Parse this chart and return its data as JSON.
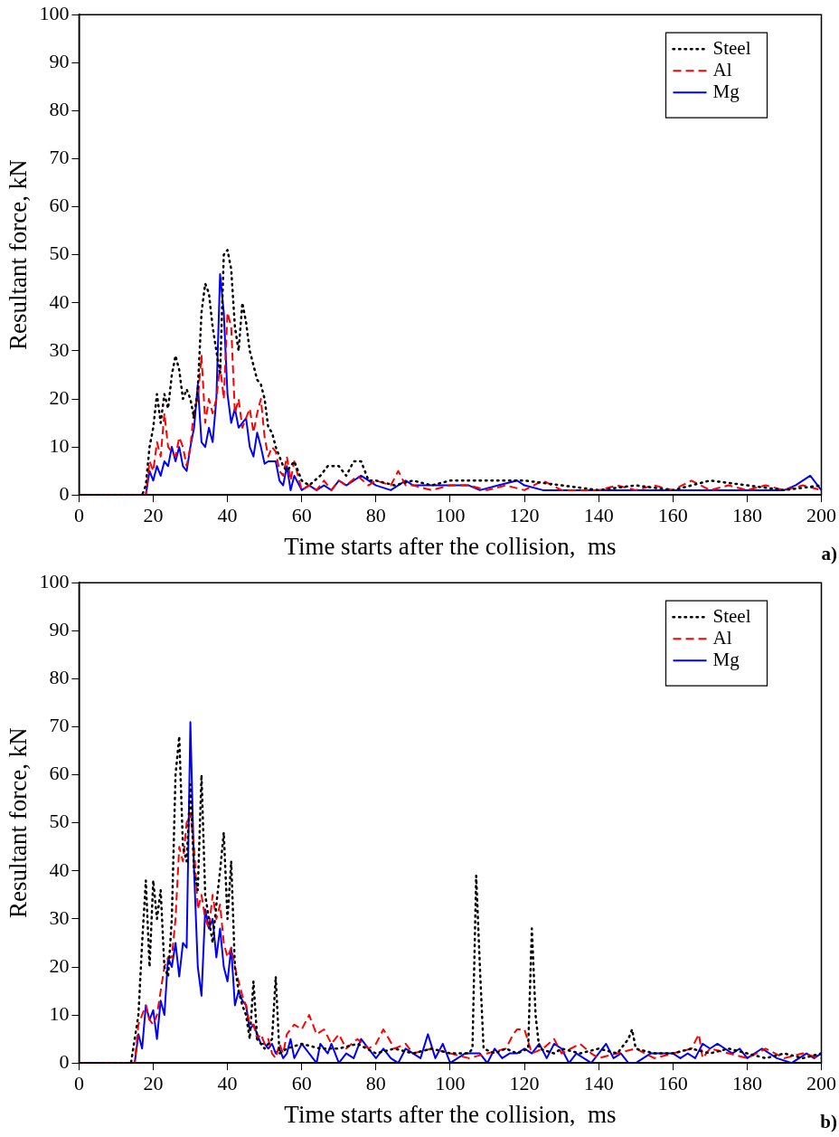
{
  "chart_data": [
    {
      "type": "line",
      "xlabel": "Time starts after the collision,  ms",
      "ylabel": "Resultant force, kN",
      "xlim": [
        0,
        200
      ],
      "ylim": [
        0,
        100
      ],
      "xticks": [
        0,
        20,
        40,
        60,
        80,
        100,
        120,
        140,
        160,
        180,
        200
      ],
      "yticks": [
        0,
        10,
        20,
        30,
        40,
        50,
        60,
        70,
        80,
        90,
        100
      ],
      "grid": false,
      "legend": "top right",
      "marker": "none",
      "annotations": [
        "a)"
      ],
      "series": [
        {
          "name": "Steel",
          "color": "#000000",
          "line_style": "dotted",
          "x": [
            0,
            17,
            18,
            19,
            20,
            21,
            22,
            23,
            24,
            25,
            26,
            27,
            28,
            29,
            30,
            31,
            32,
            33,
            34,
            35,
            36,
            37,
            38,
            39,
            40,
            41,
            42,
            43,
            44,
            45,
            46,
            47,
            48,
            49,
            50,
            51,
            52,
            53,
            54,
            55,
            56,
            58,
            60,
            62,
            65,
            67,
            70,
            72,
            74,
            76,
            78,
            80,
            85,
            90,
            95,
            100,
            110,
            120,
            130,
            140,
            150,
            160,
            170,
            180,
            190,
            200
          ],
          "values": [
            0,
            0,
            2,
            10,
            14,
            21,
            15,
            21,
            18,
            25,
            29,
            26,
            20,
            22,
            20,
            16,
            22,
            38,
            44,
            42,
            35,
            30,
            25,
            50,
            51,
            47,
            35,
            30,
            40,
            36,
            30,
            27,
            24,
            23,
            20,
            14,
            13,
            10,
            8,
            6,
            5,
            7,
            3,
            2,
            4,
            6,
            6,
            4,
            7,
            7,
            3,
            3,
            2,
            3,
            2,
            3,
            3,
            3,
            2,
            1,
            2,
            1,
            3,
            2,
            1,
            2
          ]
        },
        {
          "name": "Al",
          "color": "#ff0000",
          "line_style": "dashed",
          "x": [
            0,
            18,
            19,
            20,
            21,
            22,
            23,
            24,
            25,
            26,
            27,
            28,
            29,
            30,
            31,
            32,
            33,
            34,
            35,
            36,
            37,
            38,
            39,
            40,
            41,
            42,
            43,
            44,
            45,
            46,
            47,
            48,
            49,
            50,
            51,
            52,
            53,
            54,
            55,
            56,
            57,
            58,
            60,
            62,
            64,
            66,
            68,
            70,
            72,
            75,
            78,
            80,
            84,
            86,
            88,
            90,
            95,
            100,
            105,
            110,
            115,
            120,
            125,
            130,
            140,
            145,
            150,
            155,
            160,
            165,
            170,
            175,
            180,
            185,
            190,
            195,
            200
          ],
          "values": [
            0,
            0,
            7,
            5,
            11,
            8,
            17,
            10,
            9,
            8,
            12,
            10,
            6,
            10,
            18,
            20,
            29,
            15,
            20,
            17,
            20,
            27,
            20,
            38,
            35,
            17,
            20,
            14,
            16,
            18,
            13,
            17,
            20,
            12,
            8,
            10,
            9,
            5,
            4,
            8,
            3,
            7,
            1,
            2,
            1,
            3,
            1,
            3,
            2,
            4,
            2,
            3,
            2,
            5,
            2,
            2,
            1,
            2,
            2,
            1,
            2,
            1,
            3,
            1,
            1,
            2,
            1,
            2,
            1,
            3,
            1,
            2,
            1,
            2,
            1,
            2,
            1
          ]
        },
        {
          "name": "Mg",
          "color": "#0000ff",
          "line_style": "solid",
          "x": [
            0,
            18,
            19,
            20,
            21,
            22,
            23,
            24,
            25,
            26,
            27,
            28,
            29,
            30,
            31,
            32,
            33,
            34,
            35,
            36,
            37,
            38,
            39,
            40,
            41,
            42,
            43,
            44,
            45,
            46,
            47,
            48,
            49,
            50,
            51,
            52,
            53,
            54,
            55,
            56,
            57,
            58,
            60,
            62,
            64,
            66,
            68,
            70,
            72,
            76,
            80,
            84,
            88,
            90,
            95,
            100,
            105,
            108,
            113,
            118,
            120,
            125,
            130,
            135,
            140,
            145,
            150,
            155,
            160,
            165,
            170,
            175,
            180,
            185,
            190,
            193,
            197,
            200
          ],
          "values": [
            0,
            0,
            5,
            3,
            6,
            4,
            7,
            6,
            10,
            7,
            10,
            6,
            5,
            10,
            14,
            23,
            11,
            10,
            14,
            11,
            20,
            46,
            38,
            21,
            15,
            18,
            14,
            15,
            16,
            10,
            8,
            13,
            10,
            6.5,
            7,
            7,
            7,
            3,
            2,
            6,
            1,
            4,
            1,
            2,
            1,
            2,
            1,
            3,
            2,
            4,
            2,
            1,
            3,
            2,
            2,
            2,
            2,
            1,
            2,
            3,
            2,
            1,
            1,
            1,
            1,
            1,
            1,
            1,
            1,
            1,
            1,
            1,
            1,
            1,
            1,
            2,
            4,
            1
          ]
        }
      ]
    },
    {
      "type": "line",
      "xlabel": "Time starts after the collision,  ms",
      "ylabel": "Resultant force, kN",
      "xlim": [
        0,
        200
      ],
      "ylim": [
        0,
        100
      ],
      "xticks": [
        0,
        20,
        40,
        60,
        80,
        100,
        120,
        140,
        160,
        180,
        200
      ],
      "yticks": [
        0,
        10,
        20,
        30,
        40,
        50,
        60,
        70,
        80,
        90,
        100
      ],
      "grid": false,
      "legend": "top right",
      "marker": "none",
      "annotations": [
        "b)"
      ],
      "series": [
        {
          "name": "Steel",
          "color": "#000000",
          "line_style": "dotted",
          "x": [
            0,
            14,
            15,
            16,
            17,
            18,
            19,
            20,
            21,
            22,
            23,
            24,
            25,
            26,
            27,
            28,
            29,
            30,
            31,
            32,
            33,
            34,
            35,
            36,
            37,
            38,
            39,
            40,
            41,
            42,
            43,
            44,
            45,
            46,
            47,
            48,
            50,
            52,
            53,
            54,
            56,
            60,
            65,
            70,
            75,
            80,
            85,
            90,
            95,
            100,
            105,
            106,
            107,
            108,
            109,
            112,
            115,
            118,
            121,
            122,
            123,
            124,
            128,
            130,
            135,
            140,
            145,
            148,
            149,
            150,
            155,
            160,
            165,
            170,
            175,
            180,
            185,
            190,
            195,
            200
          ],
          "values": [
            0,
            0,
            5,
            10,
            25,
            38,
            20,
            38,
            30,
            36,
            20,
            18,
            30,
            60,
            68,
            45,
            42,
            58,
            40,
            36,
            60,
            35,
            30,
            25,
            33,
            40,
            48,
            30,
            42,
            20,
            15,
            12,
            10,
            5,
            17,
            5,
            3,
            5,
            18,
            2,
            3,
            4,
            3,
            3,
            4,
            2,
            3,
            2,
            3,
            2,
            2,
            3,
            39,
            20,
            3,
            2,
            3,
            2,
            3,
            28,
            10,
            3,
            2,
            3,
            2,
            3,
            2,
            5,
            7,
            3,
            2,
            2,
            3,
            2,
            3,
            2,
            1,
            2,
            1,
            2
          ]
        },
        {
          "name": "Al",
          "color": "#ff0000",
          "line_style": "dashed",
          "x": [
            0,
            15,
            16,
            17,
            18,
            19,
            20,
            21,
            22,
            23,
            24,
            25,
            26,
            27,
            28,
            29,
            30,
            31,
            32,
            33,
            34,
            35,
            36,
            37,
            38,
            39,
            40,
            41,
            42,
            43,
            44,
            45,
            46,
            47,
            48,
            49,
            50,
            51,
            52,
            53,
            54,
            55,
            56,
            58,
            60,
            62,
            64,
            66,
            68,
            70,
            72,
            75,
            78,
            80,
            82,
            85,
            88,
            90,
            95,
            100,
            105,
            110,
            115,
            117,
            118,
            120,
            122,
            125,
            128,
            130,
            135,
            138,
            140,
            145,
            150,
            155,
            160,
            165,
            167,
            168,
            170,
            175,
            180,
            185,
            190,
            195,
            200
          ],
          "values": [
            0,
            0,
            8,
            10,
            12,
            9,
            8,
            10,
            15,
            20,
            22,
            22,
            30,
            45,
            42,
            50,
            52,
            45,
            32,
            35,
            30,
            28,
            35,
            30,
            33,
            25,
            22,
            24,
            20,
            17,
            14,
            12,
            8,
            8,
            5,
            6,
            4,
            5,
            2,
            1,
            4,
            2,
            6,
            8,
            7,
            10,
            6,
            7,
            4,
            6,
            3,
            5,
            3,
            4,
            7,
            3,
            4,
            2,
            3,
            2,
            1,
            2,
            3,
            6,
            7,
            7,
            2,
            3,
            5,
            2,
            4,
            2,
            1,
            2,
            3,
            1,
            2,
            3,
            6,
            1,
            3,
            2,
            1,
            3,
            1,
            2,
            1
          ]
        },
        {
          "name": "Mg",
          "color": "#0000ff",
          "line_style": "solid",
          "x": [
            0,
            15,
            16,
            17,
            18,
            19,
            20,
            21,
            22,
            23,
            24,
            25,
            26,
            27,
            28,
            29,
            30,
            31,
            32,
            33,
            34,
            35,
            36,
            37,
            38,
            39,
            40,
            41,
            42,
            43,
            44,
            45,
            46,
            47,
            48,
            49,
            50,
            51,
            52,
            53,
            54,
            55,
            56,
            57,
            58,
            60,
            62,
            64,
            65,
            67,
            68,
            70,
            72,
            74,
            76,
            78,
            80,
            82,
            84,
            86,
            88,
            90,
            92,
            94,
            96,
            98,
            100,
            102,
            104,
            106,
            108,
            110,
            112,
            114,
            116,
            118,
            120,
            122,
            124,
            126,
            128,
            130,
            132,
            134,
            136,
            138,
            140,
            142,
            144,
            146,
            148,
            150,
            152,
            154,
            156,
            158,
            160,
            162,
            164,
            166,
            168,
            170,
            172,
            174,
            176,
            178,
            180,
            184,
            188,
            192,
            194,
            196,
            198,
            200
          ],
          "values": [
            0,
            0,
            6,
            3,
            12,
            9,
            11,
            5,
            13,
            10,
            22,
            20,
            25,
            18,
            25,
            24,
            71,
            40,
            20,
            14,
            32,
            28,
            30,
            22,
            28,
            20,
            17,
            24,
            12,
            15,
            13,
            12,
            7,
            8,
            6,
            4,
            4,
            3,
            4,
            2,
            3,
            1,
            2,
            5,
            1,
            4,
            2,
            0,
            4,
            2,
            4,
            0,
            2,
            1,
            5,
            3,
            1,
            3,
            1,
            0,
            3,
            2,
            1,
            6,
            1,
            4,
            0,
            1,
            2,
            2,
            2,
            0,
            3,
            1,
            2,
            2,
            3,
            2,
            4,
            1,
            4,
            3,
            0,
            2,
            1,
            0,
            2,
            4,
            1,
            2,
            0,
            0,
            1,
            2,
            2,
            2,
            2,
            1,
            2,
            1,
            4,
            3,
            4,
            3,
            2,
            3,
            1,
            3,
            1,
            0,
            1,
            2,
            1,
            2
          ]
        }
      ]
    }
  ]
}
